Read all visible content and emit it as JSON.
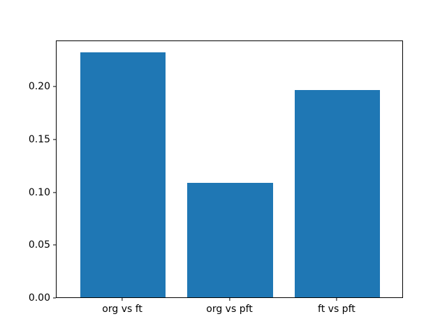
{
  "chart_data": {
    "type": "bar",
    "categories": [
      "org vs ft",
      "org vs pft",
      "ft vs pft"
    ],
    "values": [
      0.232,
      0.108,
      0.196
    ],
    "title": "",
    "xlabel": "",
    "ylabel": "",
    "ylim": [
      0,
      0.2437
    ],
    "yticks": [
      0.0,
      0.05,
      0.1,
      0.15,
      0.2
    ],
    "ytick_label_format": "2-decimals",
    "bar_color": "#1f77b4",
    "axis_color": "#000000",
    "text_color": "#000000",
    "background_color": "#ffffff",
    "grid": false,
    "legend": null,
    "bar_width_fraction": 0.8
  }
}
